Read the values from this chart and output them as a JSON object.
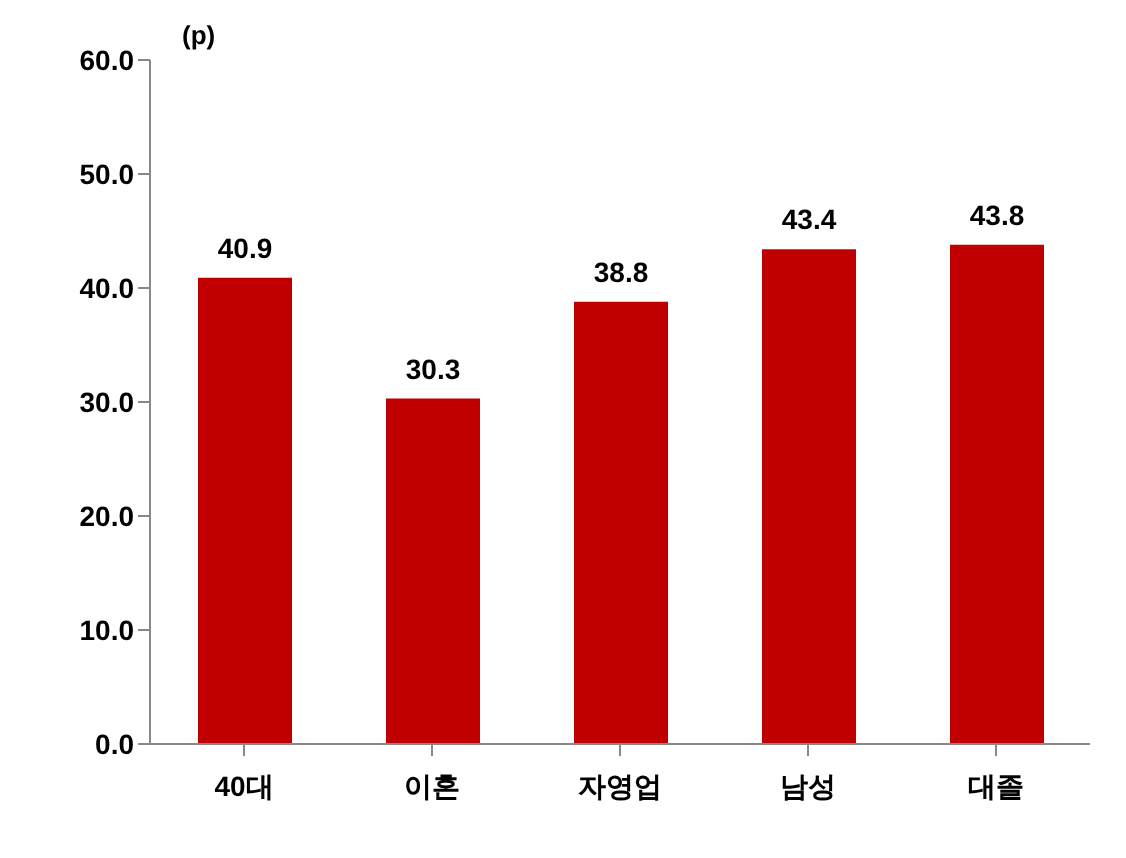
{
  "chart_data": {
    "type": "bar",
    "ylabel": "(p)",
    "categories": [
      "40대",
      "이혼",
      "자영업",
      "남성",
      "대졸"
    ],
    "values": [
      40.9,
      30.3,
      38.8,
      43.4,
      43.8
    ],
    "color": "#c00000",
    "ylim": [
      0,
      60
    ],
    "yticks": [
      {
        "value": 0,
        "label": "0.0"
      },
      {
        "value": 10,
        "label": "10.0"
      },
      {
        "value": 20,
        "label": "20.0"
      },
      {
        "value": 30,
        "label": "30.0"
      },
      {
        "value": 40,
        "label": "40.0"
      },
      {
        "value": 50,
        "label": "50.0"
      },
      {
        "value": 60,
        "label": "60.0"
      }
    ],
    "data_labels": true,
    "grid": false,
    "legend": false
  }
}
